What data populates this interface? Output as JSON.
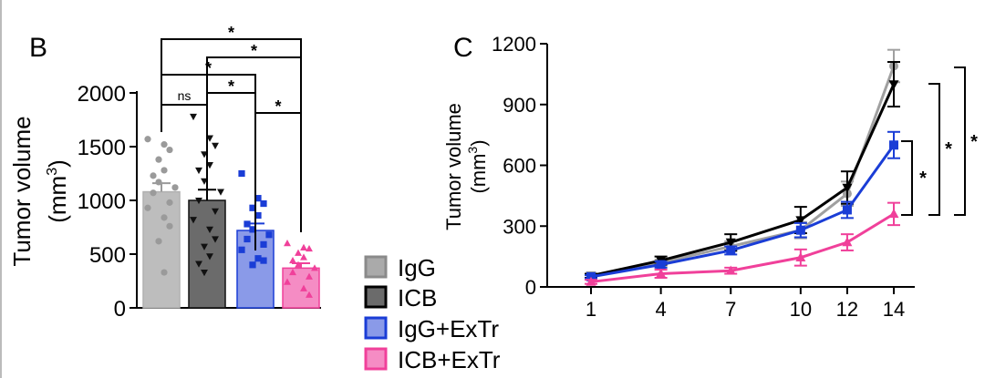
{
  "panel_b_label": "B",
  "panel_c_label": "C",
  "sig_star": "*",
  "ns_label": "ns",
  "legend": [
    {
      "label": "IgG",
      "color": "#aaaaaa",
      "edge": "#8a8a8a"
    },
    {
      "label": "ICB",
      "color": "#6b6b6b",
      "edge": "#000000"
    },
    {
      "label": "IgG+ExTr",
      "color": "#8a9ae8",
      "edge": "#1a3dd6"
    },
    {
      "label": "ICB+ExTr",
      "color": "#f58cc4",
      "edge": "#f0409a"
    }
  ],
  "chart_data": [
    {
      "panel": "B",
      "type": "bar",
      "ylabel": "Tumor volume",
      "ylabel_unit": "(mm",
      "ylabel_sup": "3",
      "ylabel_close": ")",
      "ylim": [
        0,
        2000
      ],
      "yticks": [
        0,
        500,
        1000,
        1500,
        2000
      ],
      "categories": [
        "IgG",
        "ICB",
        "IgG+ExTr",
        "ICB+ExTr"
      ],
      "values": [
        1080,
        1000,
        720,
        370
      ],
      "sem": [
        80,
        100,
        65,
        45
      ],
      "colors": [
        "#bdbdbd",
        "#6b6b6b",
        "#8a9ae8",
        "#f58cc4"
      ],
      "point_colors": [
        "#9a9a9a",
        "#111111",
        "#1a3dd6",
        "#f0409a"
      ],
      "markers": [
        "circle",
        "triangle-down",
        "square",
        "triangle-up"
      ],
      "points": [
        [
          1570,
          1520,
          1470,
          1380,
          1280,
          1230,
          1170,
          1120,
          1070,
          980,
          930,
          840,
          760,
          620,
          330
        ],
        [
          1780,
          1580,
          1510,
          1430,
          1330,
          1280,
          1180,
          1080,
          1000,
          900,
          820,
          730,
          640,
          570,
          480,
          410,
          330
        ],
        [
          1250,
          1020,
          970,
          930,
          860,
          780,
          730,
          680,
          640,
          590,
          540,
          460,
          440,
          400
        ],
        [
          600,
          560,
          550,
          510,
          470,
          440,
          400,
          370,
          330,
          290,
          240,
          180,
          120
        ]
      ],
      "comparisons": [
        {
          "a": 0,
          "b": 1,
          "label": "ns"
        },
        {
          "a": 1,
          "b": 2,
          "label": "*"
        },
        {
          "a": 2,
          "b": 3,
          "label": "*"
        },
        {
          "a": 0,
          "b": 2,
          "label": "*"
        },
        {
          "a": 1,
          "b": 3,
          "label": "*"
        },
        {
          "a": 0,
          "b": 3,
          "label": "*"
        }
      ]
    },
    {
      "panel": "C",
      "type": "line",
      "ylabel": "Tumor volume",
      "ylabel_unit": "(mm",
      "ylabel_sup": "3",
      "ylabel_close": ")",
      "ylim": [
        0,
        1200
      ],
      "yticks": [
        0,
        300,
        600,
        900,
        1200
      ],
      "x": [
        1,
        4,
        7,
        10,
        12,
        14
      ],
      "series": [
        {
          "name": "IgG",
          "color": "#a0a0a0",
          "marker": "circle",
          "values": [
            50,
            120,
            200,
            280,
            460,
            1090
          ],
          "sem": [
            8,
            15,
            25,
            40,
            60,
            80
          ]
        },
        {
          "name": "ICB",
          "color": "#000000",
          "marker": "triangle-down",
          "values": [
            55,
            130,
            220,
            330,
            490,
            1000
          ],
          "sem": [
            10,
            20,
            40,
            65,
            80,
            110
          ]
        },
        {
          "name": "IgG+ExTr",
          "color": "#1a3dd6",
          "marker": "square",
          "values": [
            50,
            110,
            180,
            280,
            380,
            700
          ],
          "sem": [
            8,
            15,
            20,
            35,
            40,
            65
          ]
        },
        {
          "name": "ICB+ExTr",
          "color": "#f0409a",
          "marker": "triangle-up",
          "values": [
            25,
            65,
            80,
            145,
            220,
            360
          ],
          "sem": [
            10,
            20,
            15,
            40,
            40,
            55
          ]
        }
      ],
      "comparisons": [
        {
          "series_a": "IgG+ExTr",
          "series_b": "ICB+ExTr",
          "label": "*"
        },
        {
          "series_a": "ICB",
          "series_b": "ICB+ExTr",
          "label": "*"
        },
        {
          "series_a": "IgG",
          "series_b": "ICB+ExTr",
          "label": "*"
        }
      ]
    }
  ]
}
